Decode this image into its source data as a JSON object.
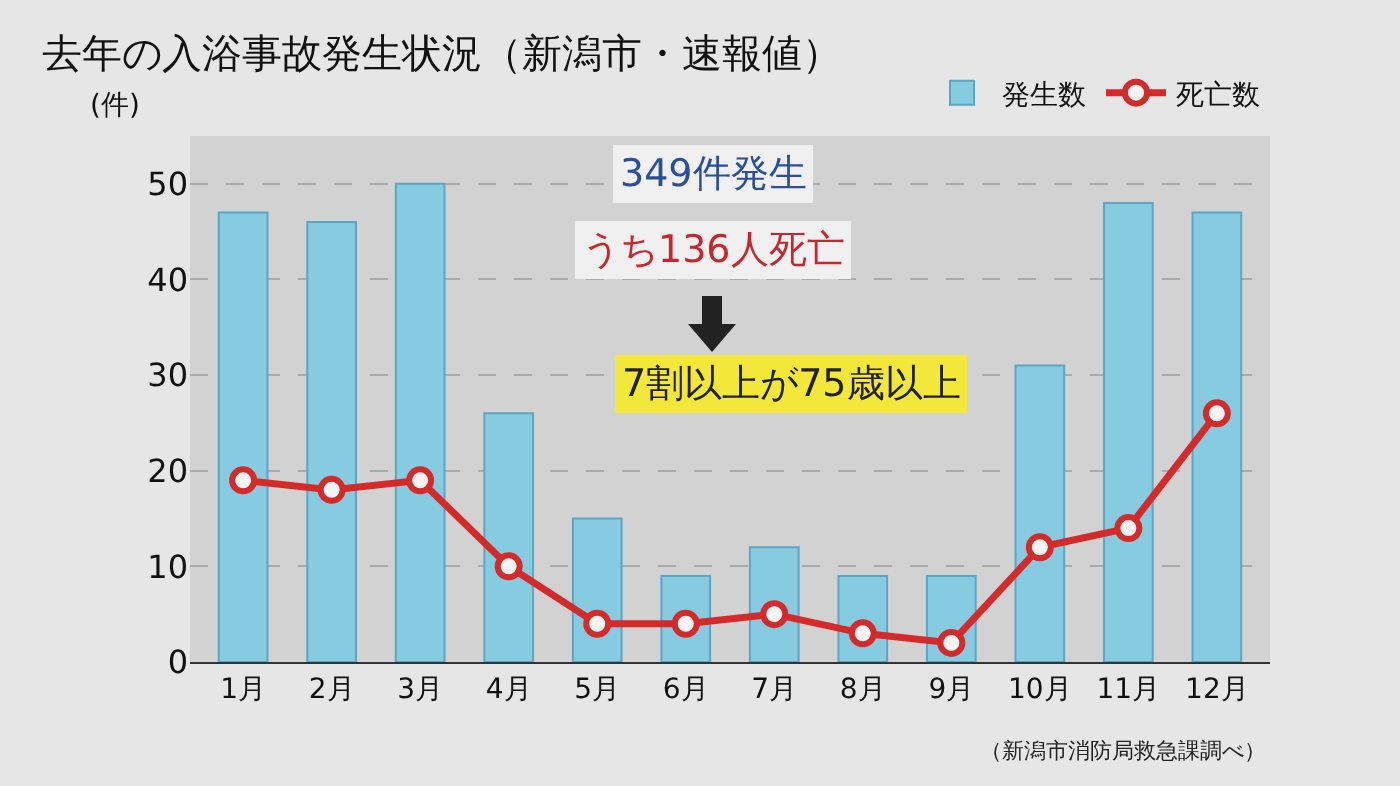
{
  "chart_data": {
    "type": "bar",
    "title": "去年の入浴事故発生状況（新潟市・速報値）",
    "ylabel": "(件)",
    "categories": [
      "1月",
      "2月",
      "3月",
      "4月",
      "5月",
      "6月",
      "7月",
      "8月",
      "9月",
      "10月",
      "11月",
      "12月"
    ],
    "series": [
      {
        "name": "発生数",
        "color": "#86cbe0",
        "values": [
          47,
          46,
          50,
          26,
          15,
          9,
          12,
          9,
          9,
          31,
          48,
          47
        ]
      },
      {
        "name": "死亡数",
        "type": "line",
        "color": "#d42a2a",
        "marker": "circle",
        "values": [
          19,
          18,
          19,
          10,
          4,
          4,
          5,
          3,
          2,
          12,
          14,
          26
        ]
      }
    ],
    "ylim": [
      0,
      55
    ],
    "yticks": [
      0,
      10,
      20,
      30,
      40,
      50
    ],
    "grid": "y",
    "legend": "top right",
    "annotations": [
      "349件発生",
      "うち136人死亡",
      "7割以上が75歳以上",
      "（新潟市消防局救急課調べ）"
    ]
  }
}
